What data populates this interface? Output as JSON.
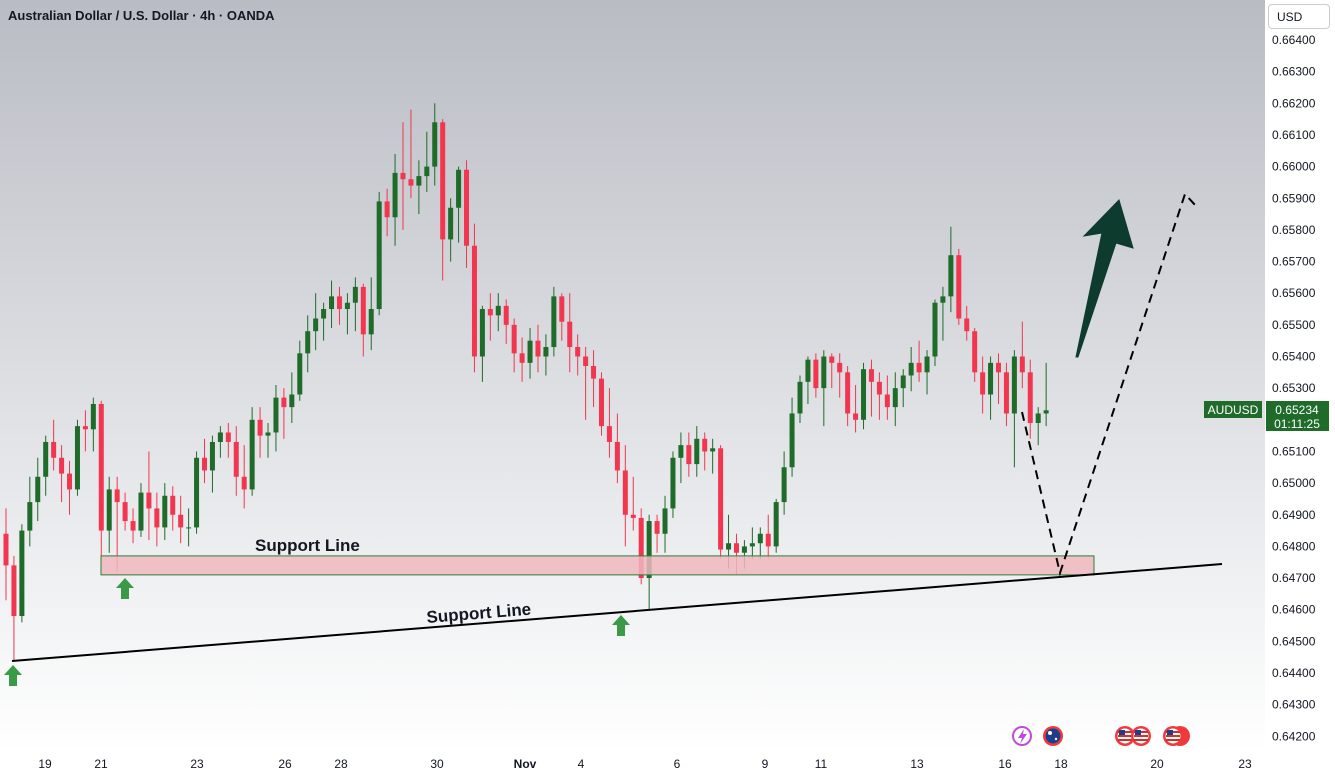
{
  "header": {
    "title": "Australian Dollar / U.S. Dollar · 4h · OANDA",
    "currency": "USD"
  },
  "price_tag": {
    "symbol": "AUDUSD",
    "price": "0.65234",
    "countdown": "01:11:25"
  },
  "annotations": {
    "support_zone_label": "Support Line",
    "trendline_label": "Support Line"
  },
  "colors": {
    "up": "#1e6b2a",
    "down": "#f2364f",
    "zone_fill": "#f0b7bf",
    "zone_border": "#2e7d32",
    "arrow": "#0d3b2e",
    "tag": "#1e6b2a",
    "marker": "#3a9a48"
  },
  "icons": [
    "flash-icon",
    "australia-flag-icon",
    "usa-flag-icon",
    "usa-flag-icon",
    "usa-flag-icon"
  ],
  "chart_data": {
    "type": "candlestick",
    "symbol": "AUDUSD",
    "timeframe": "4h",
    "ylim": [
      0.642,
      0.664
    ],
    "y_ticks": [
      "0.64200",
      "0.64300",
      "0.64400",
      "0.64500",
      "0.64600",
      "0.64700",
      "0.64800",
      "0.64900",
      "0.65000",
      "0.65100",
      "0.65200",
      "0.65300",
      "0.65400",
      "0.65500",
      "0.65600",
      "0.65700",
      "0.65800",
      "0.65900",
      "0.66000",
      "0.66100",
      "0.66200",
      "0.66300",
      "0.66400"
    ],
    "x_ticks": [
      "19",
      "21",
      "23",
      "26",
      "28",
      "30",
      "Nov",
      "4",
      "6",
      "9",
      "11",
      "13",
      "16",
      "18",
      "20",
      "23"
    ],
    "last_price": 0.65234,
    "support_zone": [
      0.6471,
      0.6477
    ],
    "candles": [
      [
        0.6484,
        0.6492,
        0.6463,
        0.6474
      ],
      [
        0.6474,
        0.6477,
        0.6444,
        0.6458
      ],
      [
        0.6458,
        0.6487,
        0.6456,
        0.6485
      ],
      [
        0.6485,
        0.6502,
        0.648,
        0.6494
      ],
      [
        0.6494,
        0.6508,
        0.6488,
        0.6502
      ],
      [
        0.6502,
        0.6515,
        0.6496,
        0.6513
      ],
      [
        0.6513,
        0.652,
        0.6504,
        0.6508
      ],
      [
        0.6508,
        0.6512,
        0.6494,
        0.6503
      ],
      [
        0.6503,
        0.6507,
        0.649,
        0.6498
      ],
      [
        0.6498,
        0.652,
        0.6496,
        0.6518
      ],
      [
        0.6518,
        0.6523,
        0.651,
        0.6517
      ],
      [
        0.6517,
        0.6527,
        0.651,
        0.6525
      ],
      [
        0.6525,
        0.6526,
        0.6477,
        0.6485
      ],
      [
        0.6485,
        0.6502,
        0.6478,
        0.6498
      ],
      [
        0.6498,
        0.6502,
        0.6472,
        0.6494
      ],
      [
        0.6494,
        0.6497,
        0.6485,
        0.6488
      ],
      [
        0.6488,
        0.6492,
        0.6481,
        0.6485
      ],
      [
        0.6485,
        0.65,
        0.6483,
        0.6497
      ],
      [
        0.6497,
        0.651,
        0.6482,
        0.6492
      ],
      [
        0.6492,
        0.6497,
        0.648,
        0.6486
      ],
      [
        0.6486,
        0.65,
        0.6482,
        0.6496
      ],
      [
        0.6496,
        0.6499,
        0.6485,
        0.649
      ],
      [
        0.649,
        0.6496,
        0.6481,
        0.6486
      ],
      [
        0.6486,
        0.6492,
        0.648,
        0.6486
      ],
      [
        0.6486,
        0.651,
        0.6484,
        0.6508
      ],
      [
        0.6508,
        0.6514,
        0.65,
        0.6504
      ],
      [
        0.6504,
        0.6515,
        0.6497,
        0.6513
      ],
      [
        0.6513,
        0.6518,
        0.6508,
        0.6516
      ],
      [
        0.6516,
        0.6519,
        0.6508,
        0.6513
      ],
      [
        0.6513,
        0.6518,
        0.6496,
        0.6502
      ],
      [
        0.6502,
        0.6512,
        0.6492,
        0.6498
      ],
      [
        0.6498,
        0.6524,
        0.6496,
        0.652
      ],
      [
        0.652,
        0.6524,
        0.6508,
        0.6515
      ],
      [
        0.6515,
        0.6519,
        0.6508,
        0.6516
      ],
      [
        0.6516,
        0.6531,
        0.651,
        0.6527
      ],
      [
        0.6527,
        0.653,
        0.6514,
        0.6524
      ],
      [
        0.6524,
        0.6535,
        0.6519,
        0.6528
      ],
      [
        0.6528,
        0.6545,
        0.6526,
        0.6541
      ],
      [
        0.6541,
        0.6553,
        0.6535,
        0.6548
      ],
      [
        0.6548,
        0.656,
        0.6542,
        0.6552
      ],
      [
        0.6552,
        0.6557,
        0.6545,
        0.6555
      ],
      [
        0.6555,
        0.6564,
        0.6549,
        0.6559
      ],
      [
        0.6559,
        0.6562,
        0.655,
        0.6555
      ],
      [
        0.6555,
        0.656,
        0.6547,
        0.6557
      ],
      [
        0.6557,
        0.6565,
        0.6548,
        0.6562
      ],
      [
        0.6562,
        0.6563,
        0.654,
        0.6547
      ],
      [
        0.6547,
        0.6565,
        0.6542,
        0.6555
      ],
      [
        0.6555,
        0.6592,
        0.6553,
        0.6589
      ],
      [
        0.6589,
        0.6593,
        0.6578,
        0.6584
      ],
      [
        0.6584,
        0.6604,
        0.6575,
        0.6598
      ],
      [
        0.6598,
        0.6614,
        0.658,
        0.6596
      ],
      [
        0.6596,
        0.6618,
        0.659,
        0.6594
      ],
      [
        0.6594,
        0.6602,
        0.6585,
        0.6597
      ],
      [
        0.6597,
        0.6611,
        0.6592,
        0.66
      ],
      [
        0.66,
        0.662,
        0.6594,
        0.6614
      ],
      [
        0.6614,
        0.6615,
        0.6564,
        0.6577
      ],
      [
        0.6577,
        0.659,
        0.657,
        0.6587
      ],
      [
        0.6587,
        0.66,
        0.6576,
        0.6599
      ],
      [
        0.6599,
        0.6602,
        0.6568,
        0.6575
      ],
      [
        0.6575,
        0.6582,
        0.6535,
        0.654
      ],
      [
        0.654,
        0.6556,
        0.6532,
        0.6555
      ],
      [
        0.6555,
        0.656,
        0.6545,
        0.6553
      ],
      [
        0.6553,
        0.656,
        0.6548,
        0.6556
      ],
      [
        0.6556,
        0.6558,
        0.6544,
        0.655
      ],
      [
        0.655,
        0.6552,
        0.6535,
        0.6541
      ],
      [
        0.6541,
        0.6546,
        0.6532,
        0.6538
      ],
      [
        0.6538,
        0.6549,
        0.6533,
        0.6545
      ],
      [
        0.6545,
        0.655,
        0.6535,
        0.654
      ],
      [
        0.654,
        0.6547,
        0.6534,
        0.6543
      ],
      [
        0.6543,
        0.6562,
        0.654,
        0.6559
      ],
      [
        0.6559,
        0.656,
        0.6545,
        0.6551
      ],
      [
        0.6551,
        0.656,
        0.6535,
        0.6543
      ],
      [
        0.6543,
        0.6547,
        0.6534,
        0.654
      ],
      [
        0.654,
        0.6543,
        0.652,
        0.6537
      ],
      [
        0.6537,
        0.6542,
        0.6524,
        0.6533
      ],
      [
        0.6533,
        0.6535,
        0.6515,
        0.6518
      ],
      [
        0.6518,
        0.653,
        0.6508,
        0.6513
      ],
      [
        0.6513,
        0.6522,
        0.65,
        0.6504
      ],
      [
        0.6504,
        0.6512,
        0.648,
        0.649
      ],
      [
        0.649,
        0.6502,
        0.6485,
        0.6489
      ],
      [
        0.6489,
        0.6492,
        0.6468,
        0.647
      ],
      [
        0.647,
        0.649,
        0.646,
        0.6488
      ],
      [
        0.6488,
        0.649,
        0.6478,
        0.6484
      ],
      [
        0.6484,
        0.6496,
        0.6478,
        0.6492
      ],
      [
        0.6492,
        0.651,
        0.6489,
        0.6508
      ],
      [
        0.6508,
        0.6516,
        0.65,
        0.6512
      ],
      [
        0.6512,
        0.6516,
        0.6502,
        0.6506
      ],
      [
        0.6506,
        0.6518,
        0.6502,
        0.6514
      ],
      [
        0.6514,
        0.6516,
        0.6504,
        0.651
      ],
      [
        0.651,
        0.6514,
        0.6503,
        0.6511
      ],
      [
        0.6511,
        0.6512,
        0.6476,
        0.6479
      ],
      [
        0.6479,
        0.649,
        0.6473,
        0.6481
      ],
      [
        0.6481,
        0.6484,
        0.6471,
        0.6478
      ],
      [
        0.6478,
        0.6482,
        0.6473,
        0.648
      ],
      [
        0.648,
        0.6486,
        0.6476,
        0.6481
      ],
      [
        0.6481,
        0.6486,
        0.6476,
        0.6484
      ],
      [
        0.6484,
        0.649,
        0.6476,
        0.648
      ],
      [
        0.648,
        0.6495,
        0.6478,
        0.6494
      ],
      [
        0.6494,
        0.651,
        0.649,
        0.6505
      ],
      [
        0.6505,
        0.6527,
        0.6502,
        0.6522
      ],
      [
        0.6522,
        0.6534,
        0.6519,
        0.6532
      ],
      [
        0.6532,
        0.654,
        0.6525,
        0.6539
      ],
      [
        0.6539,
        0.6541,
        0.6527,
        0.653
      ],
      [
        0.653,
        0.6542,
        0.6518,
        0.654
      ],
      [
        0.654,
        0.6541,
        0.653,
        0.6538
      ],
      [
        0.6538,
        0.6541,
        0.6527,
        0.6535
      ],
      [
        0.6535,
        0.6537,
        0.6518,
        0.6522
      ],
      [
        0.6522,
        0.6531,
        0.6516,
        0.652
      ],
      [
        0.652,
        0.6538,
        0.6517,
        0.6536
      ],
      [
        0.6536,
        0.6539,
        0.6521,
        0.6532
      ],
      [
        0.6532,
        0.6535,
        0.652,
        0.6528
      ],
      [
        0.6528,
        0.6534,
        0.652,
        0.6524
      ],
      [
        0.6524,
        0.6535,
        0.6518,
        0.653
      ],
      [
        0.653,
        0.6536,
        0.6524,
        0.6534
      ],
      [
        0.6534,
        0.6543,
        0.6529,
        0.6538
      ],
      [
        0.6538,
        0.6545,
        0.6532,
        0.6535
      ],
      [
        0.6535,
        0.6542,
        0.6528,
        0.654
      ],
      [
        0.654,
        0.6558,
        0.6537,
        0.6557
      ],
      [
        0.6557,
        0.6562,
        0.6545,
        0.6559
      ],
      [
        0.6559,
        0.6581,
        0.6554,
        0.6572
      ],
      [
        0.6572,
        0.6574,
        0.655,
        0.6552
      ],
      [
        0.6552,
        0.6556,
        0.6545,
        0.6548
      ],
      [
        0.6548,
        0.6549,
        0.6532,
        0.6535
      ],
      [
        0.6535,
        0.654,
        0.6522,
        0.6528
      ],
      [
        0.6528,
        0.654,
        0.652,
        0.6538
      ],
      [
        0.6538,
        0.6541,
        0.6525,
        0.6535
      ],
      [
        0.6535,
        0.6538,
        0.6518,
        0.6522
      ],
      [
        0.6522,
        0.6542,
        0.6505,
        0.654
      ],
      [
        0.654,
        0.6551,
        0.653,
        0.6535
      ],
      [
        0.6535,
        0.6539,
        0.6514,
        0.6519
      ],
      [
        0.6519,
        0.6524,
        0.6512,
        0.6522
      ],
      [
        0.6522,
        0.6538,
        0.6518,
        0.6523
      ]
    ]
  }
}
